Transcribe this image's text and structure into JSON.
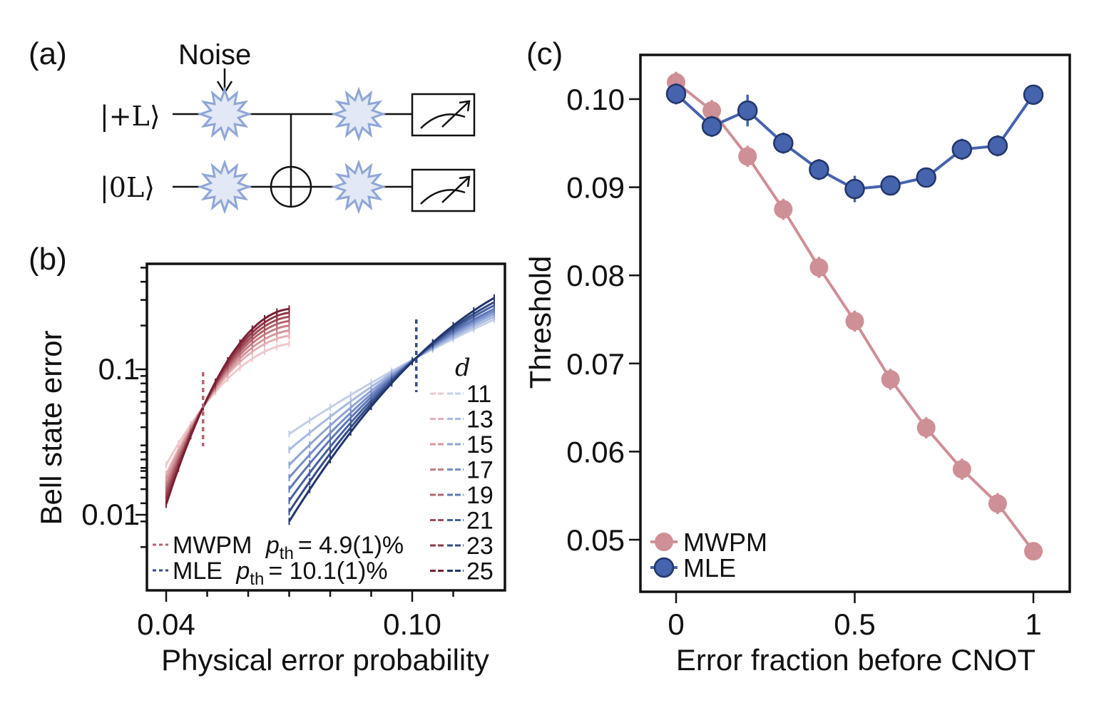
{
  "figure": {
    "panel_a_label": "(a)",
    "panel_b_label": "(b)",
    "panel_c_label": "(c)"
  },
  "circuit": {
    "noise_label": "Noise",
    "qubit_top_label": "|+L⟩",
    "qubit_bottom_label": "|0L⟩",
    "noise_color": "#e3e8f6",
    "noise_stroke": "#8fa6d6"
  },
  "chart_data": [
    {
      "panel": "b",
      "type": "line",
      "xlabel": "Physical error probability",
      "ylabel": "Bell state error",
      "xscale": "linear",
      "yscale": "log",
      "xticks": [
        "0.04",
        "0.10"
      ],
      "yticks": [
        "0.1",
        "0.01"
      ],
      "legend_title": "d",
      "legend_distances": [
        "11",
        "13",
        "15",
        "17",
        "19",
        "21",
        "23",
        "25"
      ],
      "mwpm_colors": [
        "#efc9cc",
        "#e4b0b5",
        "#d4969c",
        "#c47d85",
        "#b4646e",
        "#a14c58",
        "#8e3747",
        "#7a2035"
      ],
      "mle_colors": [
        "#c3cfe8",
        "#a9bae0",
        "#8fa3d6",
        "#778ec8",
        "#5e77b6",
        "#4861a0",
        "#344b86",
        "#22366b"
      ],
      "annotations": {
        "mwpm": {
          "name": "MWPM",
          "symbol": "p",
          "sub": "th",
          "value": "= 4.9(1)%"
        },
        "mle": {
          "name": "MLE",
          "symbol": "p",
          "sub": "th",
          "value": "= 10.1(1)%"
        }
      },
      "thresholds": {
        "mwpm": 0.049,
        "mle": 0.101,
        "mwpm_error": 0.055,
        "mle_error": 0.12
      },
      "mwpm_curves": {
        "x_range": [
          0.04,
          0.07
        ],
        "y_at_low": [
          0.022,
          0.019,
          0.0175,
          0.016,
          0.0148,
          0.0138,
          0.0128,
          0.0118
        ],
        "y_at_high": [
          0.15,
          0.17,
          0.185,
          0.2,
          0.215,
          0.23,
          0.245,
          0.26
        ]
      },
      "mle_curves": {
        "x_range": [
          0.07,
          0.12
        ],
        "y_at_low": [
          0.036,
          0.028,
          0.022,
          0.018,
          0.015,
          0.0125,
          0.0105,
          0.009
        ],
        "y_at_high": [
          0.22,
          0.23,
          0.24,
          0.25,
          0.26,
          0.275,
          0.29,
          0.31
        ]
      }
    },
    {
      "panel": "c",
      "type": "line",
      "xlabel": "Error fraction before CNOT",
      "ylabel": "Threshold",
      "xticks": [
        "0",
        "0.5",
        "1"
      ],
      "yticks": [
        "0.10",
        "0.09",
        "0.08",
        "0.07",
        "0.06",
        "0.05"
      ],
      "ylim": [
        0.0445,
        0.105
      ],
      "xlim": [
        -0.1,
        1.1
      ],
      "series": [
        {
          "name": "MWPM",
          "color": "#cf8f96",
          "x": [
            0,
            0.1,
            0.2,
            0.3,
            0.4,
            0.5,
            0.6,
            0.7,
            0.8,
            0.9,
            1.0
          ],
          "y": [
            0.1019,
            0.0987,
            0.0935,
            0.0875,
            0.0809,
            0.0748,
            0.0682,
            0.0627,
            0.058,
            0.0541,
            0.0487
          ],
          "err": [
            0.0012,
            0.0012,
            0.0012,
            0.0012,
            0.0012,
            0.0012,
            0.0012,
            0.0012,
            0.0012,
            0.0012,
            0.0008
          ]
        },
        {
          "name": "MLE",
          "color": "#4663ae",
          "x": [
            0,
            0.1,
            0.2,
            0.3,
            0.4,
            0.5,
            0.6,
            0.7,
            0.8,
            0.9,
            1.0
          ],
          "y": [
            0.1006,
            0.0969,
            0.0987,
            0.095,
            0.092,
            0.0898,
            0.0902,
            0.0911,
            0.0943,
            0.0947,
            0.1005
          ],
          "err": [
            0.0012,
            0.0012,
            0.0018,
            0.0012,
            0.0012,
            0.0015,
            0.001,
            0.001,
            0.0012,
            0.0012,
            0.001
          ]
        }
      ]
    }
  ]
}
